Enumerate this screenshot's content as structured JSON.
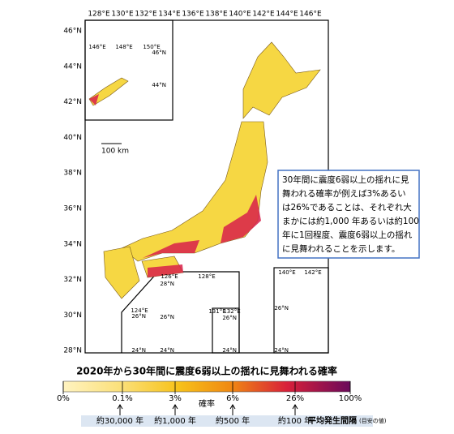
{
  "map": {
    "lon_labels": [
      "128°E",
      "130°E",
      "132°E",
      "134°E",
      "136°E",
      "138°E",
      "140°E",
      "142°E",
      "144°E",
      "146°E"
    ],
    "lat_labels": [
      "46°N",
      "44°N",
      "42°N",
      "40°N",
      "38°N",
      "36°N",
      "34°N",
      "32°N",
      "30°N",
      "28°N"
    ],
    "scale_bar": "100 km",
    "inset_north": {
      "lon_labels": [
        "146°E",
        "148°E",
        "150°E"
      ],
      "lat_labels": [
        "46°N",
        "44°N"
      ]
    },
    "inset_okinawa": {
      "lon_labels": [
        "126°E",
        "128°E"
      ],
      "lat_labels": [
        "28°N",
        "26°N",
        "24°N"
      ]
    },
    "inset_sakishima": {
      "lon_labels": [
        "124°E"
      ],
      "lat_labels": [
        "26°N",
        "24°N"
      ]
    },
    "inset_daito": {
      "lon_labels": [
        "131°E",
        "132°E"
      ],
      "lat_labels": [
        "26°N",
        "24°N"
      ]
    },
    "inset_ogasawara": {
      "lon_labels": [
        "140°E",
        "142°E"
      ],
      "lat_labels": [
        "26°N",
        "24°N"
      ]
    }
  },
  "text_box": {
    "lines": [
      "30年間に震度6弱以上の揺れに見",
      "舞われる確率が例えば3%あるい",
      "は26%であることは、それぞれ大",
      "まかには約1,000 年あるいは約100",
      "年に1回程度、震度6弱以上の揺れ",
      "に見舞われることを示します。"
    ]
  },
  "legend": {
    "title": "2020年から30年間に震度6弱以上の揺れに見舞われる確率",
    "ticks": [
      "0%",
      "0.1%",
      "3%",
      "6%",
      "26%",
      "100%"
    ],
    "axis_label": "確率",
    "intervals": [
      "約30,000 年",
      "約1,000 年",
      "約500 年",
      "約100 年"
    ],
    "interval_title": "平均発生間隔",
    "interval_note": "(目安の値)"
  }
}
